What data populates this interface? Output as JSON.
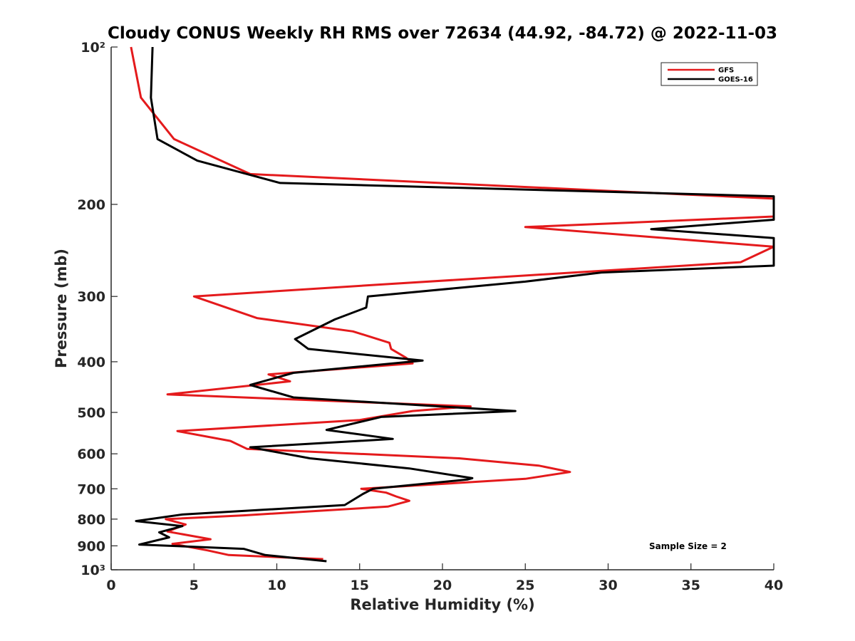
{
  "chart_data": {
    "type": "line",
    "title": "Cloudy CONUS Weekly RH RMS over 72634 (44.92, -84.72) @ 2022-11-03",
    "xlabel": "Relative Humidity (%)",
    "ylabel": "Pressure (mb)",
    "xlim": [
      0,
      40
    ],
    "ylim": [
      100,
      1000
    ],
    "yscale": "log",
    "y_reversed": true,
    "x_ticks": [
      "0",
      "5",
      "10",
      "15",
      "20",
      "25",
      "30",
      "35",
      "40"
    ],
    "x_tick_values": [
      0,
      5,
      10,
      15,
      20,
      25,
      30,
      35,
      40
    ],
    "y_tick_values": [
      100,
      200,
      300,
      400,
      500,
      600,
      700,
      800,
      900,
      1000
    ],
    "y_ticks": [
      "10²",
      "200",
      "300",
      "400",
      "500",
      "600",
      "700",
      "800",
      "900",
      "10³"
    ],
    "grid": false,
    "legend_position": "top-right",
    "annotation": "Sample Size = 2",
    "series": [
      {
        "name": "GFS",
        "color": "#e41a1c",
        "points": [
          [
            1.2,
            100
          ],
          [
            1.8,
            125
          ],
          [
            3.8,
            150
          ],
          [
            8.4,
            175
          ],
          [
            40,
            195
          ],
          [
            40,
            211
          ],
          [
            25.0,
            221
          ],
          [
            40,
            241
          ],
          [
            38.0,
            258
          ],
          [
            16.0,
            285
          ],
          [
            5.0,
            300
          ],
          [
            8.8,
            330
          ],
          [
            14.6,
            350
          ],
          [
            16.8,
            368
          ],
          [
            16.9,
            378
          ],
          [
            17.8,
            393
          ],
          [
            18.2,
            403
          ],
          [
            9.5,
            423
          ],
          [
            10.8,
            436
          ],
          [
            3.4,
            462
          ],
          [
            21.7,
            487
          ],
          [
            18.2,
            497
          ],
          [
            15.0,
            517
          ],
          [
            4.0,
            543
          ],
          [
            7.2,
            567
          ],
          [
            8.2,
            587
          ],
          [
            21.0,
            612
          ],
          [
            25.8,
            632
          ],
          [
            27.7,
            650
          ],
          [
            25.0,
            670
          ],
          [
            15.1,
            700
          ],
          [
            16.6,
            712
          ],
          [
            17.2,
            724
          ],
          [
            18.0,
            738
          ],
          [
            16.7,
            757
          ],
          [
            8.0,
            787
          ],
          [
            3.3,
            800
          ],
          [
            4.5,
            819
          ],
          [
            3.4,
            845
          ],
          [
            6.0,
            874
          ],
          [
            3.7,
            892
          ],
          [
            5.8,
            918
          ],
          [
            7.1,
            937
          ],
          [
            12.8,
            954
          ]
        ]
      },
      {
        "name": "GOES-16",
        "color": "#000000",
        "points": [
          [
            2.5,
            100
          ],
          [
            2.4,
            125
          ],
          [
            2.8,
            150
          ],
          [
            5.2,
            165
          ],
          [
            10.2,
            182
          ],
          [
            40,
            193
          ],
          [
            40,
            214
          ],
          [
            32.6,
            223
          ],
          [
            40,
            232
          ],
          [
            40,
            262
          ],
          [
            29.6,
            270
          ],
          [
            25.0,
            281
          ],
          [
            15.5,
            300
          ],
          [
            15.4,
            315
          ],
          [
            13.5,
            332
          ],
          [
            11.1,
            362
          ],
          [
            11.9,
            378
          ],
          [
            18.8,
            398
          ],
          [
            11.0,
            420
          ],
          [
            8.4,
            443
          ],
          [
            11.0,
            468
          ],
          [
            24.4,
            497
          ],
          [
            16.3,
            510
          ],
          [
            13.0,
            540
          ],
          [
            17.0,
            562
          ],
          [
            8.4,
            583
          ],
          [
            12.0,
            612
          ],
          [
            18.0,
            640
          ],
          [
            21.8,
            668
          ],
          [
            21.5,
            672
          ],
          [
            15.8,
            700
          ],
          [
            15.2,
            716
          ],
          [
            14.1,
            752
          ],
          [
            4.3,
            784
          ],
          [
            1.5,
            807
          ],
          [
            4.3,
            825
          ],
          [
            2.9,
            848
          ],
          [
            3.5,
            867
          ],
          [
            1.7,
            895
          ],
          [
            8.0,
            912
          ],
          [
            9.3,
            937
          ],
          [
            13.0,
            963
          ]
        ]
      }
    ]
  }
}
